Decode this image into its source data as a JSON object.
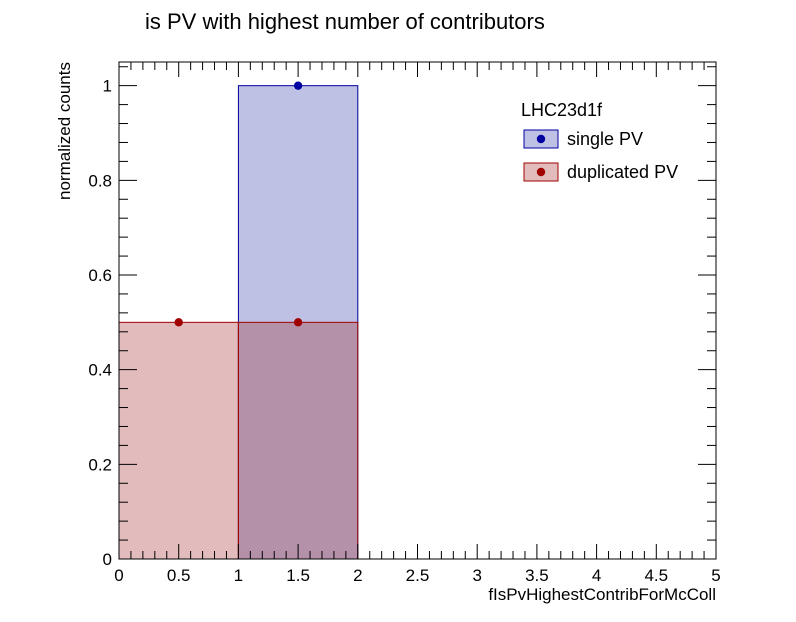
{
  "chart_data": {
    "type": "bar",
    "title": "is PV with highest number of contributors",
    "xlabel": "fIsPvHighestContribForMcColl",
    "ylabel": "normalized counts",
    "xlim": [
      0,
      5
    ],
    "ylim": [
      0,
      1.05
    ],
    "x_ticks": [
      "0",
      "0.5",
      "1",
      "1.5",
      "2",
      "2.5",
      "3",
      "3.5",
      "4",
      "4.5",
      "5"
    ],
    "y_ticks": [
      "0",
      "0.2",
      "0.4",
      "0.6",
      "0.8",
      "1"
    ],
    "bin_edges": [
      0,
      1,
      2,
      3,
      4,
      5
    ],
    "grid": false,
    "legend": {
      "title": "LHC23d1f",
      "placement": "top-right"
    },
    "series": [
      {
        "name": "single PV",
        "values": [
          0,
          1.0,
          0,
          0,
          0
        ],
        "color": "#0000a0",
        "fill": "#bfc1e4"
      },
      {
        "name": "duplicated PV",
        "values": [
          0.5,
          0.5,
          0,
          0,
          0
        ],
        "color": "#a00000",
        "fill": "#a02020"
      }
    ]
  }
}
